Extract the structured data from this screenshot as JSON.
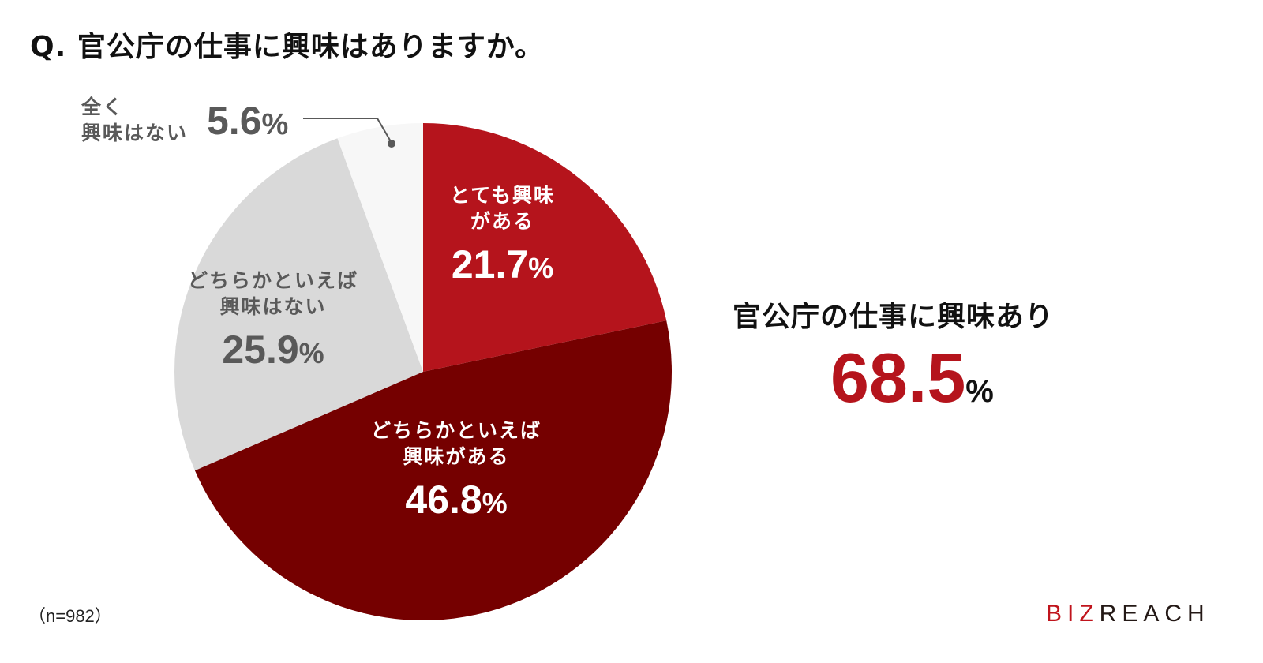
{
  "title": "Q. 官公庁の仕事に興味はありますか。",
  "chart_data": {
    "type": "pie",
    "title": "Q. 官公庁の仕事に興味はありますか。",
    "start_angle": "12 o'clock, clockwise",
    "categories": [
      "とても興味がある",
      "どちらかといえば興味がある",
      "どちらかといえば興味はない",
      "全く興味はない"
    ],
    "values": [
      21.7,
      46.8,
      25.9,
      5.6
    ],
    "unit": "%",
    "colors": [
      "#b5141c",
      "#750000",
      "#d9d9d9",
      "#f7f7f7"
    ],
    "sample_size": "n=982",
    "annotation": {
      "label": "官公庁の仕事に興味あり",
      "value": 68.5,
      "unit": "%"
    }
  },
  "labels": {
    "s1": {
      "line1": "とても興味",
      "line2": "がある",
      "pct": "21.7",
      "unit": "%"
    },
    "s2": {
      "line1": "どちらかといえば",
      "line2": "興味がある",
      "pct": "46.8",
      "unit": "%"
    },
    "s3": {
      "line1": "どちらかといえば",
      "line2": "興味はない",
      "pct": "25.9",
      "unit": "%"
    },
    "s4": {
      "line1": "全く",
      "line2": "興味はない",
      "pct": "5.6",
      "unit": "%"
    }
  },
  "summary": {
    "title": "官公庁の仕事に興味あり",
    "value": "68.5",
    "unit": "%"
  },
  "note": "（n=982）",
  "logo": {
    "red": "BIZ",
    "black": "REACH"
  }
}
